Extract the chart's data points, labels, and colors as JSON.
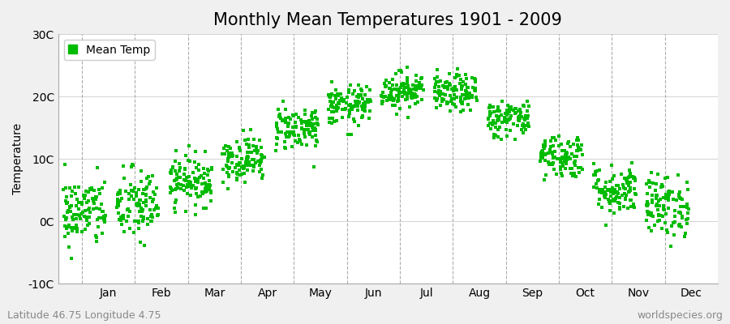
{
  "title": "Monthly Mean Temperatures 1901 - 2009",
  "ylabel": "Temperature",
  "ylim": [
    -10,
    30
  ],
  "yticks": [
    -10,
    0,
    10,
    20,
    30
  ],
  "ytick_labels": [
    "-10C",
    "0C",
    "10C",
    "20C",
    "30C"
  ],
  "months": [
    "Jan",
    "Feb",
    "Mar",
    "Apr",
    "May",
    "Jun",
    "Jul",
    "Aug",
    "Sep",
    "Oct",
    "Nov",
    "Dec"
  ],
  "n_years": 109,
  "monthly_means": [
    1.5,
    2.5,
    6.5,
    10.0,
    15.0,
    18.5,
    21.0,
    20.5,
    16.5,
    10.5,
    5.0,
    2.5
  ],
  "monthly_stds": [
    2.8,
    3.0,
    2.0,
    1.8,
    1.8,
    1.6,
    1.5,
    1.5,
    1.5,
    1.8,
    2.0,
    2.5
  ],
  "dot_color": "#00BB00",
  "dot_size": 5,
  "figure_bg_color": "#F0F0F0",
  "plot_bg_color": "#FFFFFF",
  "legend_label": "Mean Temp",
  "footer_left": "Latitude 46.75 Longitude 4.75",
  "footer_right": "worldspecies.org",
  "title_fontsize": 15,
  "axis_fontsize": 10,
  "footer_fontsize": 9,
  "vline_color": "#999999",
  "hline_color": "#CCCCCC",
  "seed": 42
}
